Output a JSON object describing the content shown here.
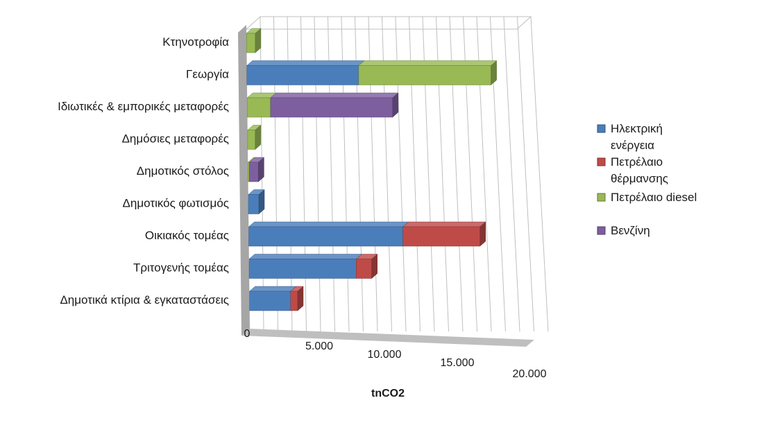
{
  "chart_data": {
    "type": "bar",
    "orientation": "horizontal",
    "stacked": true,
    "style": "3d",
    "xlabel": "tnCO2",
    "xlim": [
      0,
      20000
    ],
    "xticks": [
      {
        "value": 0,
        "label": "0"
      },
      {
        "value": 5000,
        "label": "5.000"
      },
      {
        "value": 10000,
        "label": "10.000"
      },
      {
        "value": 15000,
        "label": "15.000"
      },
      {
        "value": 20000,
        "label": "20.000"
      }
    ],
    "grid": true,
    "legend_position": "right",
    "categories": [
      "Δημοτικά κτίρια & εγκαταστάσεις",
      "Τριτογενής τομέας",
      "Οικιακός τομέας",
      "Δημοτικός φωτισμός",
      "Δημοτικός στόλος",
      "Δημόσιες μεταφορές",
      "Ιδιωτικές & εμπορικές μεταφορές",
      "Γεωργία",
      "Κτηνοτροφία"
    ],
    "series": [
      {
        "name_lines": [
          "Ηλεκτρική",
          "ενέργεια"
        ],
        "color": "#4a7ebb",
        "values": [
          2900,
          7600,
          11000,
          750,
          0,
          0,
          0,
          8200,
          0
        ]
      },
      {
        "name_lines": [
          "Πετρέλαιο",
          "θέρμανσης"
        ],
        "color": "#be4b48",
        "values": [
          500,
          1100,
          5500,
          0,
          0,
          0,
          0,
          0,
          0
        ]
      },
      {
        "name_lines": [
          "Πετρέλαιο diesel"
        ],
        "color": "#98b954",
        "values": [
          0,
          0,
          0,
          0,
          100,
          550,
          1700,
          9700,
          650
        ]
      },
      {
        "name_lines": [
          "Βενζίνη"
        ],
        "color": "#7d5fa0",
        "values": [
          0,
          0,
          0,
          0,
          650,
          0,
          8900,
          0,
          0
        ]
      }
    ]
  }
}
